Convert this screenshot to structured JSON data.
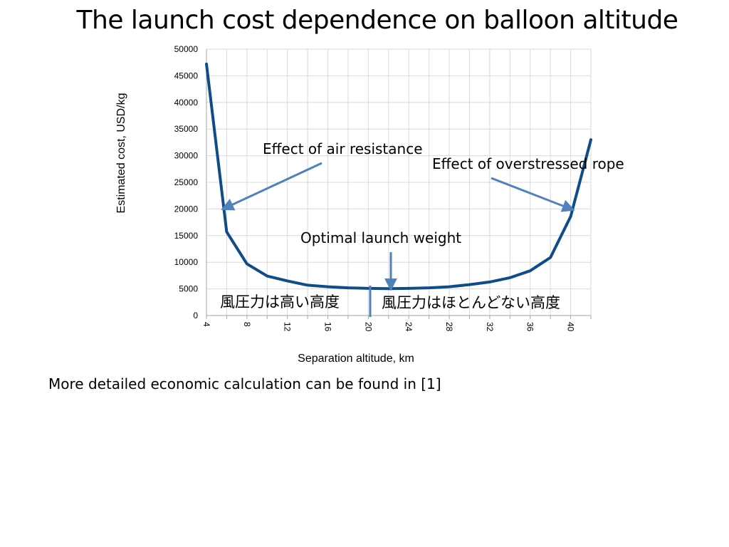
{
  "slide": {
    "title": "The launch cost dependence on balloon altitude",
    "footnote": "More detailed economic calculation can be found in [1]"
  },
  "chart_data": {
    "type": "line",
    "xlabel": "Separation altitude, km",
    "ylabel": "Estimated cost, USD/kg",
    "x_ticks": [
      4,
      8,
      12,
      16,
      20,
      24,
      28,
      32,
      36,
      40
    ],
    "y_ticks": [
      0,
      5000,
      10000,
      15000,
      20000,
      25000,
      30000,
      35000,
      40000,
      45000,
      50000
    ],
    "xlim": [
      4,
      42
    ],
    "ylim": [
      0,
      50000
    ],
    "grid": true,
    "series": [
      {
        "color": "#0f4c8a",
        "x": [
          4,
          6,
          8,
          10,
          12,
          14,
          16,
          18,
          20,
          22,
          24,
          26,
          28,
          30,
          32,
          34,
          36,
          38,
          40,
          42
        ],
        "y": [
          47200,
          15700,
          9700,
          7400,
          6500,
          5700,
          5400,
          5200,
          5100,
          5050,
          5100,
          5200,
          5400,
          5800,
          6300,
          7100,
          8400,
          10900,
          18600,
          33000
        ]
      }
    ],
    "annotations": [
      {
        "text": "Effect of air resistance"
      },
      {
        "text": "Effect of overstressed rope"
      },
      {
        "text": "Optimal launch weight"
      },
      {
        "text": "風圧力は高い高度"
      },
      {
        "text": "風圧力はほとんどない高度"
      }
    ]
  }
}
